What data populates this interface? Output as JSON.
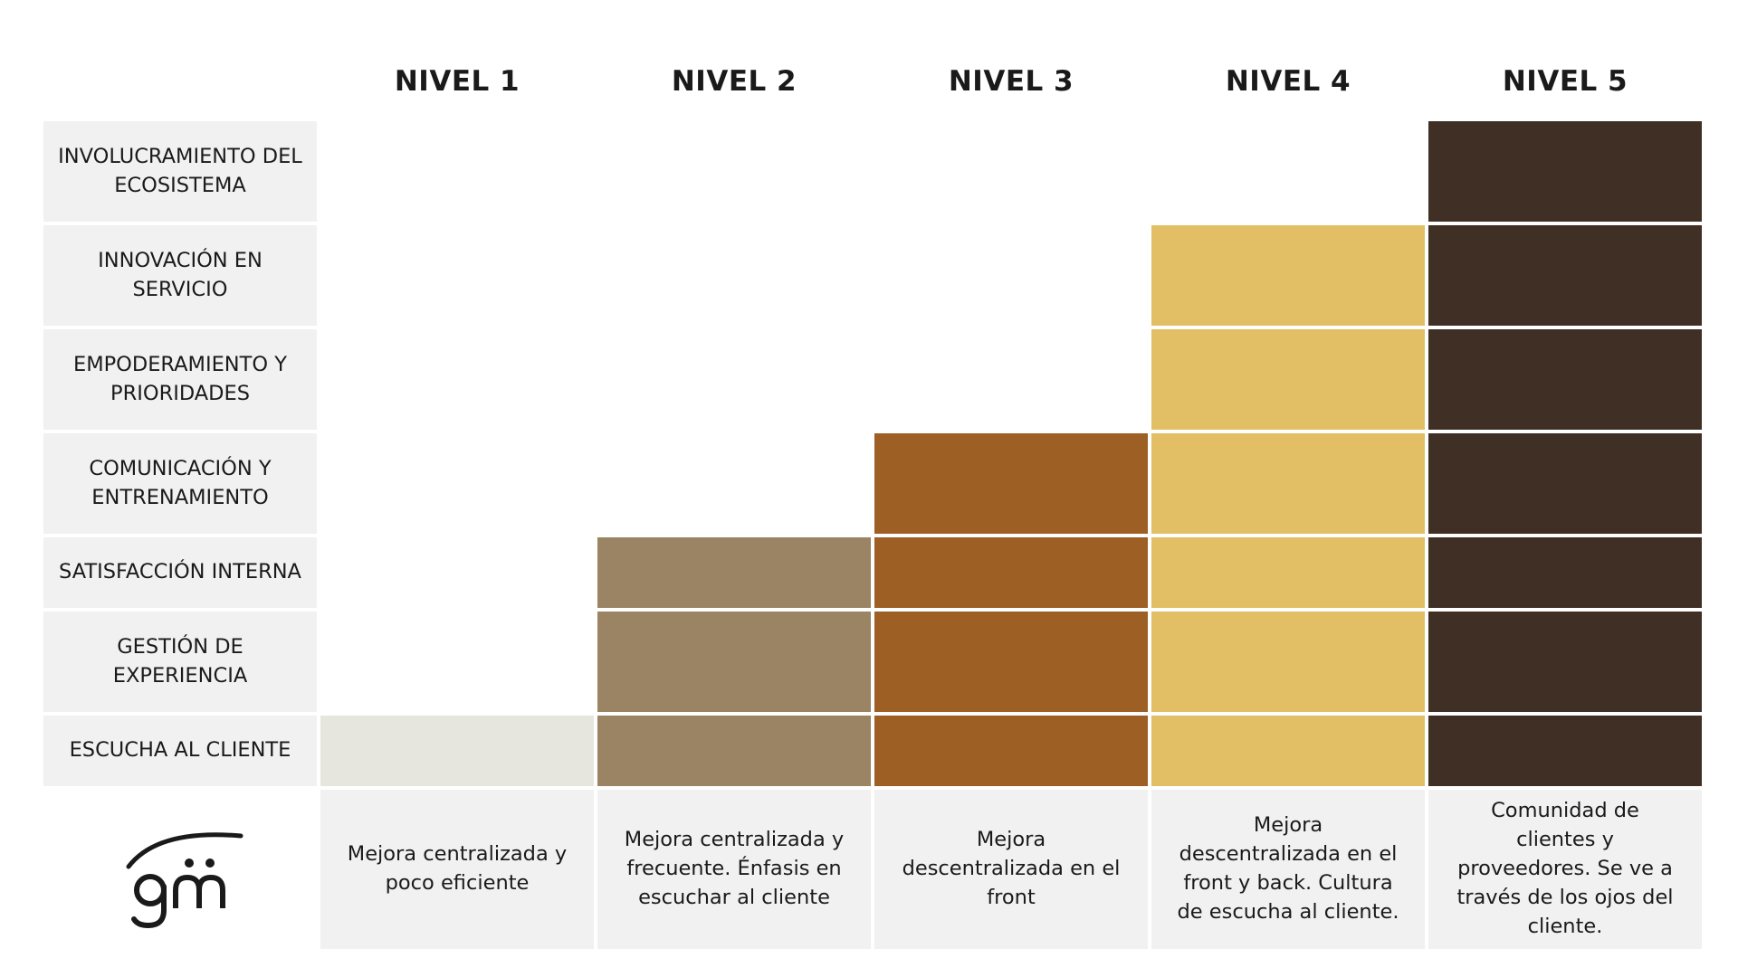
{
  "levels": [
    "NIVEL 1",
    "NIVEL 2",
    "NIVEL 3",
    "NIVEL 4",
    "NIVEL 5"
  ],
  "dimensions": [
    {
      "label": "INVOLUCRAMIENTO DEL ECOSISTEMA",
      "min_level": 5
    },
    {
      "label": "INNOVACIÓN EN SERVICIO",
      "min_level": 4
    },
    {
      "label": "EMPODERAMIENTO Y PRIORIDADES",
      "min_level": 4
    },
    {
      "label": "COMUNICACIÓN Y ENTRENAMIENTO",
      "min_level": 3
    },
    {
      "label": "SATISFACCIÓN INTERNA",
      "min_level": 2
    },
    {
      "label": "GESTIÓN DE EXPERIENCIA",
      "min_level": 2
    },
    {
      "label": "ESCUCHA AL CLIENTE",
      "min_level": 1
    }
  ],
  "level_colors": [
    "#e6e6df",
    "#9b8463",
    "#9e5f25",
    "#e2bf64",
    "#402f25"
  ],
  "descriptions": [
    "Mejora centralizada y poco eficiente",
    "Mejora centralizada y frecuente. Énfasis en escuchar al cliente",
    "Mejora descentralizada en el front",
    "Mejora descentralizada en el front y back. Cultura de escucha al cliente.",
    "Comunidad de clientes y proveedores. Se ve a través de los ojos del cliente."
  ],
  "logo": {
    "icon": "gm-logo-icon"
  }
}
